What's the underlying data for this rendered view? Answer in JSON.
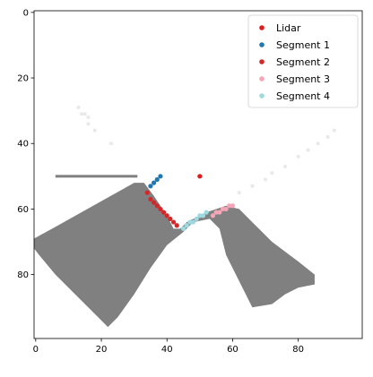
{
  "chart_data": {
    "type": "scatter",
    "title": "",
    "xlabel": "",
    "ylabel": "",
    "xlim": [
      -0.5,
      99.5
    ],
    "ylim": [
      99.5,
      -0.5
    ],
    "y_inverted": true,
    "grid": false,
    "legend_position": "top-right",
    "xticks": [
      "0",
      "20",
      "40",
      "60",
      "80"
    ],
    "xtick_values": [
      0,
      20,
      40,
      60,
      80
    ],
    "yticks": [
      "0",
      "20",
      "40",
      "60",
      "80"
    ],
    "ytick_values": [
      0,
      20,
      40,
      60,
      80
    ],
    "occupancy_grid": {
      "description_value_dark": "#808080",
      "description_value_light": "#e8e8e8",
      "dark_polygons": [
        [
          [
            -0.5,
            69
          ],
          [
            5,
            66
          ],
          [
            30,
            52
          ],
          [
            33,
            52
          ],
          [
            36,
            56
          ],
          [
            40,
            62
          ],
          [
            42,
            66
          ],
          [
            44,
            66
          ],
          [
            46,
            64
          ],
          [
            52,
            61
          ],
          [
            58,
            59
          ],
          [
            62,
            60
          ],
          [
            66,
            64
          ],
          [
            72,
            70
          ],
          [
            80,
            76
          ],
          [
            85,
            80
          ],
          [
            85,
            83
          ],
          [
            80,
            84
          ],
          [
            76,
            86
          ],
          [
            72,
            89
          ],
          [
            66,
            90
          ],
          [
            62,
            82
          ],
          [
            58,
            74
          ],
          [
            56,
            66
          ],
          [
            53,
            63
          ],
          [
            48,
            64
          ],
          [
            45,
            67
          ],
          [
            40,
            71
          ],
          [
            35,
            78
          ],
          [
            30,
            86
          ],
          [
            25,
            93
          ],
          [
            22,
            96
          ],
          [
            18,
            92
          ],
          [
            12,
            86
          ],
          [
            6,
            80
          ],
          [
            1,
            74
          ],
          [
            -0.5,
            72
          ]
        ]
      ],
      "dark_line": [
        [
          6,
          50
        ],
        [
          31,
          50
        ]
      ],
      "light_points": [
        [
          13,
          29
        ],
        [
          14,
          31
        ],
        [
          15,
          31
        ],
        [
          16,
          32
        ],
        [
          16,
          34
        ],
        [
          18,
          36
        ],
        [
          23,
          40
        ],
        [
          57,
          60
        ],
        [
          62,
          55
        ],
        [
          66,
          53
        ],
        [
          70,
          51
        ],
        [
          72,
          49
        ],
        [
          76,
          47
        ],
        [
          80,
          44
        ],
        [
          83,
          42
        ],
        [
          86,
          40
        ],
        [
          89,
          38
        ],
        [
          91,
          36
        ]
      ]
    },
    "series": [
      {
        "name": "Lidar",
        "color": "#e31a1c",
        "x": [
          50
        ],
        "y": [
          50
        ]
      },
      {
        "name": "Segment 1",
        "color": "#1f78b4",
        "x": [
          35,
          36,
          37,
          38
        ],
        "y": [
          53,
          52,
          51,
          50
        ]
      },
      {
        "name": "Segment 2",
        "color": "#d62728",
        "x": [
          34,
          35,
          36,
          37,
          38,
          39,
          40,
          41,
          42,
          43
        ],
        "y": [
          55,
          57,
          58,
          59,
          60,
          61,
          62,
          63,
          64,
          65
        ]
      },
      {
        "name": "Segment 3",
        "color": "#f4a6b7",
        "x": [
          54,
          55,
          56,
          57,
          58,
          59,
          60
        ],
        "y": [
          62,
          61,
          61,
          60,
          60,
          59,
          59
        ]
      },
      {
        "name": "Segment 4",
        "color": "#9ed9e0",
        "x": [
          45,
          46,
          47,
          48,
          49,
          50,
          51,
          52
        ],
        "y": [
          66,
          65,
          64,
          64,
          63,
          62,
          62,
          61
        ]
      }
    ]
  }
}
